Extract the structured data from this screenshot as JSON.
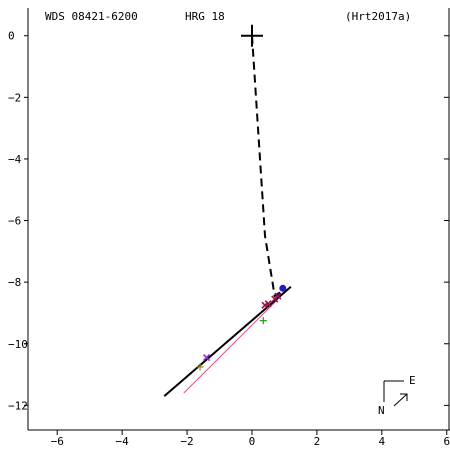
{
  "chart_data": {
    "type": "scatter",
    "header": {
      "id": "WDS 08421-6200",
      "name": "HRG  18",
      "ref": "(Hrt2017a)"
    },
    "xlim": [
      -6.9,
      6.1
    ],
    "ylim": [
      -12.8,
      0.9
    ],
    "x_ticks": [
      -6,
      -4,
      -2,
      0,
      2,
      4,
      6
    ],
    "y_ticks": [
      0,
      -2,
      -4,
      -6,
      -8,
      -10,
      -12
    ],
    "primary": {
      "x": 0,
      "y": 0,
      "color": "#000000"
    },
    "dashed_path": [
      [
        0,
        0
      ],
      [
        0.05,
        -0.8
      ],
      [
        0.4,
        -6.5
      ],
      [
        0.7,
        -8.45
      ],
      [
        1.0,
        -8.25
      ]
    ],
    "orbit_line": [
      [
        -2.7,
        -11.7
      ],
      [
        1.2,
        -8.15
      ]
    ],
    "thin_line": [
      [
        -2.1,
        -11.6
      ],
      [
        0.8,
        -8.55
      ]
    ],
    "observations": [
      {
        "x": 0.95,
        "y": -8.2,
        "marker": "dot",
        "color": "#2020c0"
      },
      {
        "x": 0.8,
        "y": -8.45,
        "marker": "cross",
        "color": "#9b1050"
      },
      {
        "x": 0.7,
        "y": -8.55,
        "marker": "cross",
        "color": "#9b1050"
      },
      {
        "x": 0.5,
        "y": -8.7,
        "marker": "cross",
        "color": "#9b1050"
      },
      {
        "x": 0.4,
        "y": -8.75,
        "marker": "cross",
        "color": "#9b1050"
      },
      {
        "x": 0.35,
        "y": -9.25,
        "marker": "plus",
        "color": "#2a9a2a"
      },
      {
        "x": -1.4,
        "y": -10.45,
        "marker": "cross",
        "color": "#9030c0"
      },
      {
        "x": -1.6,
        "y": -10.75,
        "marker": "plus",
        "color": "#8a8a20"
      }
    ],
    "compass": {
      "north": "N",
      "east": "E"
    },
    "colors": {
      "axis": "#000000",
      "orbit": "#000000"
    }
  }
}
